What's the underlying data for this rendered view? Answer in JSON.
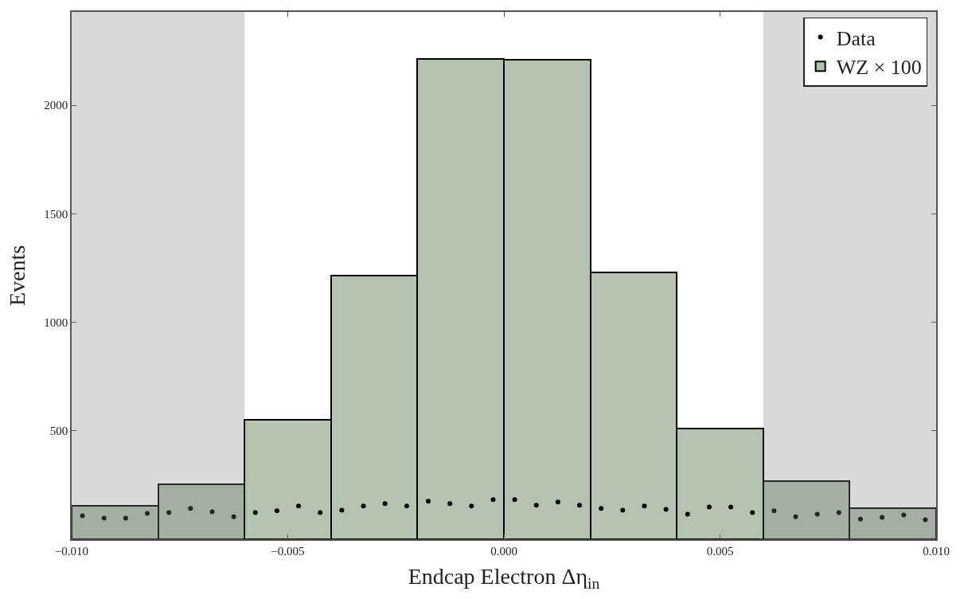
{
  "chart_data": {
    "type": "histogram",
    "xlabel": "Endcap Electron Δη$_{in}$",
    "ylabel": "Events",
    "bins": [
      -0.01,
      -0.008,
      -0.006,
      -0.004,
      -0.002,
      0.0,
      0.002,
      0.004,
      0.006,
      0.008,
      0.01
    ],
    "series": [
      {
        "name": "Data",
        "type": "scatter",
        "color": "#000000",
        "x": [
          -0.00975,
          -0.00925,
          -0.00875,
          -0.00825,
          -0.00775,
          -0.00725,
          -0.00675,
          -0.00625,
          -0.00575,
          -0.00525,
          -0.00475,
          -0.00425,
          -0.00375,
          -0.00325,
          -0.00275,
          -0.00225,
          -0.00175,
          -0.00125,
          -0.00075,
          -0.00025,
          0.00025,
          0.00075,
          0.00125,
          0.00175,
          0.00225,
          0.00275,
          0.00325,
          0.00375,
          0.00425,
          0.00475,
          0.00525,
          0.00575,
          0.00625,
          0.00675,
          0.00725,
          0.00775,
          0.00825,
          0.00875,
          0.00925,
          0.00975
        ],
        "values": [
          108,
          97,
          97,
          119,
          123,
          142,
          127,
          104,
          123,
          131,
          153,
          123,
          134,
          153,
          164,
          153,
          175,
          164,
          153,
          183,
          183,
          157,
          172,
          157,
          142,
          134,
          153,
          138,
          116,
          149,
          149,
          123,
          131,
          104,
          116,
          123,
          93,
          101,
          112,
          90
        ]
      },
      {
        "name": "WZ × 100",
        "type": "histogram",
        "color": "#b4c2b0",
        "values": [
          153,
          254,
          549,
          1216,
          2213,
          2209,
          1231,
          511,
          269,
          142
        ]
      }
    ],
    "bands": [
      {
        "axis": "x",
        "from": -0.01,
        "to": -0.006,
        "color": "#808080"
      },
      {
        "axis": "x",
        "from": 0.006,
        "to": 0.01,
        "color": "#808080"
      }
    ],
    "xlim": [
      -0.01,
      0.01
    ],
    "xticks": [
      {
        "value": -0.01,
        "label": "−0.010"
      },
      {
        "value": -0.005,
        "label": "−0.005"
      },
      {
        "value": 0,
        "label": "0.000"
      },
      {
        "value": 0.005,
        "label": "0.005"
      },
      {
        "value": 0.01,
        "label": "0.010"
      }
    ],
    "ylim": [
      0,
      2430
    ],
    "yticks": [
      500,
      1000,
      1500,
      2000
    ],
    "legend": "top right",
    "marker": "circle"
  }
}
